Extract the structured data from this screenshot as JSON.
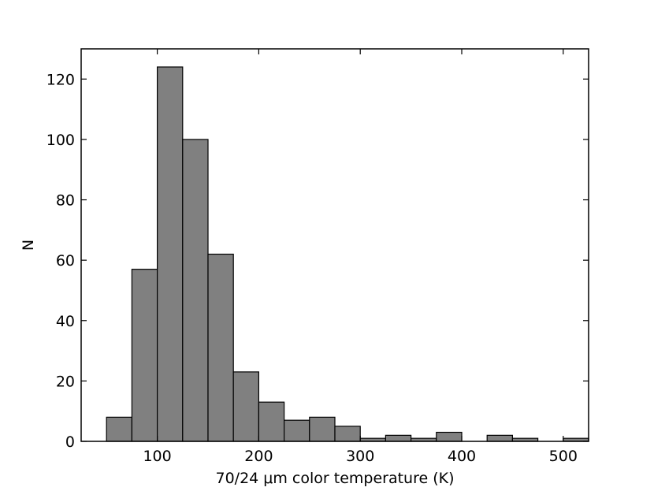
{
  "chart_data": {
    "type": "histogram",
    "xlabel": "70/24 μm color temperature (K)",
    "ylabel": "N",
    "bins": [
      50,
      75,
      100,
      125,
      150,
      175,
      200,
      225,
      250,
      275,
      300,
      325,
      350,
      375,
      400,
      425,
      450,
      475,
      500,
      525
    ],
    "values": [
      8,
      57,
      124,
      100,
      62,
      23,
      13,
      7,
      8,
      5,
      1,
      2,
      1,
      3,
      0,
      2,
      1,
      0,
      1
    ],
    "color": "#808080",
    "xlim": [
      25,
      525
    ],
    "xticks": [
      100,
      200,
      300,
      400,
      500
    ],
    "ylim": [
      0,
      130
    ],
    "yticks": [
      0,
      20,
      40,
      60,
      80,
      100,
      120
    ]
  }
}
